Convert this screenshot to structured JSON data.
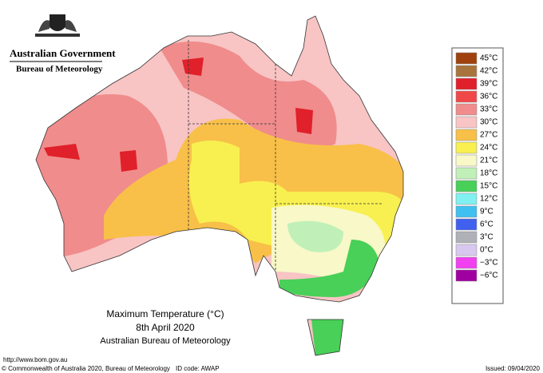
{
  "header": {
    "government": "Australian Government",
    "agency": "Bureau of Meteorology"
  },
  "map": {
    "title": "Maximum Temperature (°C)",
    "date": "8th April 2020",
    "source": "Australian Bureau of Meteorology"
  },
  "legend": {
    "items": [
      {
        "label": "45°C",
        "color": "#a0420e"
      },
      {
        "label": "42°C",
        "color": "#a8743c"
      },
      {
        "label": "39°C",
        "color": "#e0202a"
      },
      {
        "label": "36°C",
        "color": "#f04848"
      },
      {
        "label": "33°C",
        "color": "#f08c8c"
      },
      {
        "label": "30°C",
        "color": "#f8c4c4"
      },
      {
        "label": "27°C",
        "color": "#f8c048"
      },
      {
        "label": "24°C",
        "color": "#f8f050"
      },
      {
        "label": "21°C",
        "color": "#f8f8c8"
      },
      {
        "label": "18°C",
        "color": "#c0f0b8"
      },
      {
        "label": "15°C",
        "color": "#48d058"
      },
      {
        "label": "12°C",
        "color": "#80f0f0"
      },
      {
        "label": "9°C",
        "color": "#40c0f0"
      },
      {
        "label": "6°C",
        "color": "#4060f0"
      },
      {
        "label": "3°C",
        "color": "#b0b0b8"
      },
      {
        "label": "0°C",
        "color": "#d8c8f0"
      },
      {
        "label": "−3°C",
        "color": "#f040f0"
      },
      {
        "label": "−6°C",
        "color": "#a000a0"
      }
    ]
  },
  "footer": {
    "url": "http://www.bom.gov.au",
    "copyright": "© Commonwealth of Australia 2020, Bureau of Meteorology",
    "id_code": "ID code: AWAP",
    "issued": "Issued: 09/04/2020"
  }
}
